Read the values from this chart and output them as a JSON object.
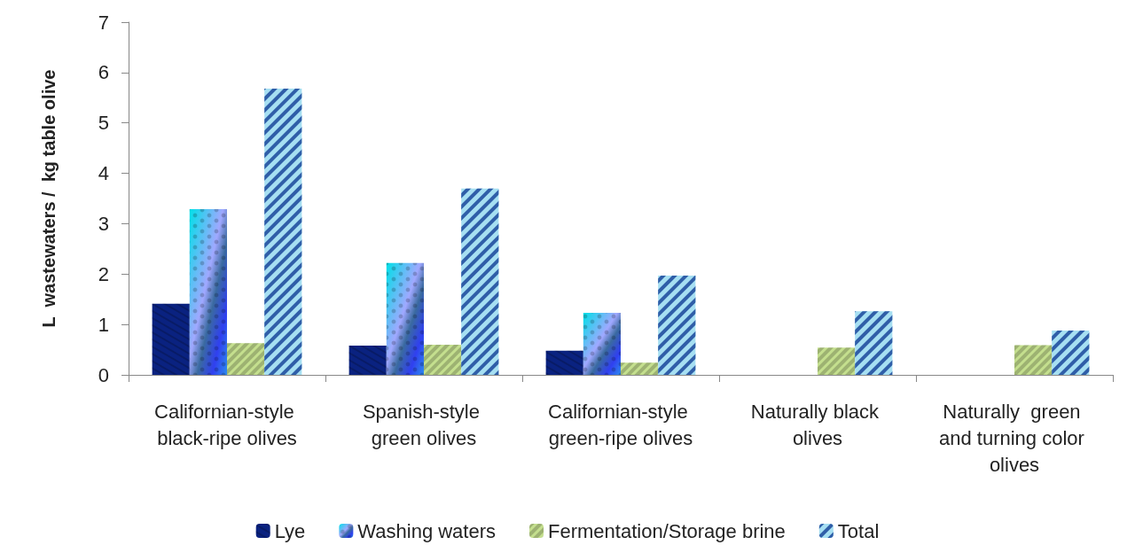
{
  "chart_data": {
    "type": "bar",
    "ylabel": "L  wastewaters /  kg table olive",
    "categories": [
      "Californian-style black-ripe olives",
      "Spanish-style green olives",
      "Californian-style green-ripe olives",
      "Naturally black olives",
      "Naturally  green and turning color olives"
    ],
    "series": [
      {
        "name": "Lye",
        "color": "#0a2280",
        "values": [
          1.41,
          0.58,
          0.48,
          0,
          0
        ]
      },
      {
        "name": "Washing waters",
        "color": "#2e8bef",
        "values": [
          3.29,
          2.22,
          1.23,
          0,
          0
        ]
      },
      {
        "name": "Fermentation/Storage brine",
        "color": "#c4df8e",
        "values": [
          0.63,
          0.6,
          0.24,
          0.54,
          0.59
        ]
      },
      {
        "name": "Total",
        "color": "#a6dff2",
        "values": [
          5.68,
          3.7,
          1.97,
          1.26,
          0.88
        ]
      }
    ],
    "ylim": [
      0,
      7
    ],
    "yticks": [
      0,
      1,
      2,
      3,
      4,
      5,
      6,
      7
    ],
    "grid": false,
    "legend": "bottom"
  }
}
